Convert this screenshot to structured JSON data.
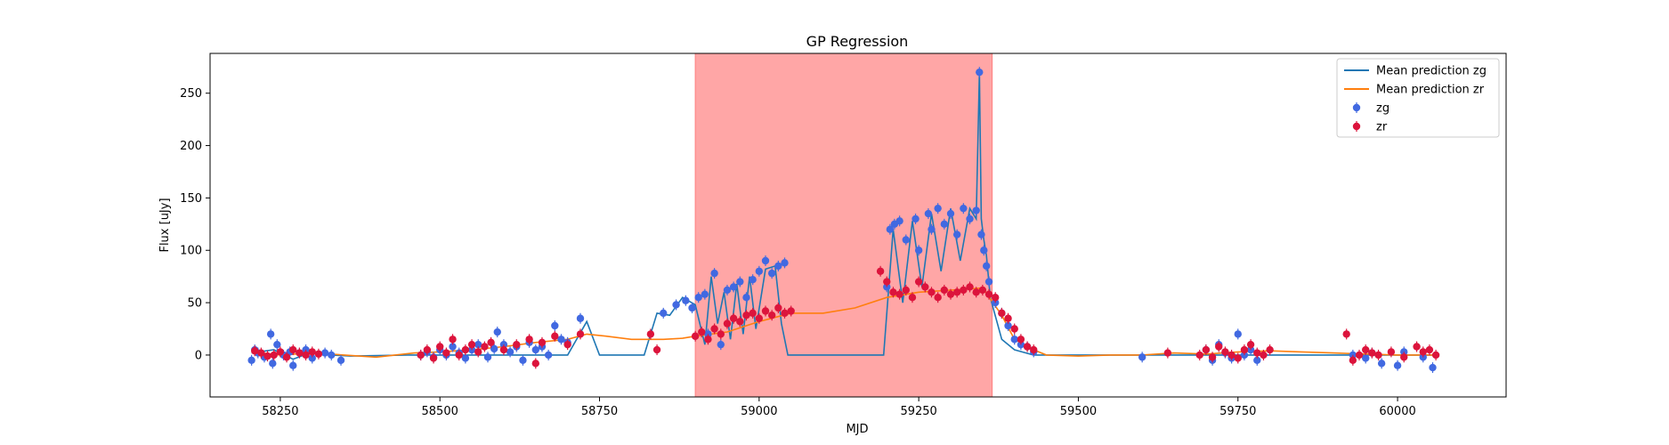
{
  "chart_data": {
    "type": "scatter",
    "title": "GP Regression",
    "xlabel": "MJD",
    "ylabel": "Flux [uJy]",
    "xlim": [
      58140,
      60170
    ],
    "ylim": [
      -40,
      288
    ],
    "xticks": [
      58250,
      58500,
      58750,
      59000,
      59250,
      59500,
      59750,
      60000
    ],
    "yticks": [
      0,
      50,
      100,
      150,
      200,
      250
    ],
    "grid": false,
    "legend_position": "top-right",
    "highlight_span": {
      "x0": 58900,
      "x1": 59365,
      "color": "#ffa6a6"
    },
    "colors": {
      "mean_zg": "#1f77b4",
      "mean_zr": "#ff7f0e",
      "zg": "#4169e1",
      "zr": "#dc143c"
    },
    "legend": [
      {
        "label": "Mean prediction zg",
        "kind": "line",
        "color": "#1f77b4"
      },
      {
        "label": "Mean prediction zr",
        "kind": "line",
        "color": "#ff7f0e"
      },
      {
        "label": "zg",
        "kind": "marker",
        "color": "#4169e1"
      },
      {
        "label": "zr",
        "kind": "marker",
        "color": "#dc143c"
      }
    ],
    "series": [
      {
        "name": "Mean prediction zg",
        "kind": "line",
        "x": [
          58205,
          58240,
          58270,
          58300,
          58330,
          58360,
          58450,
          58700,
          58730,
          58750,
          58820,
          58840,
          58860,
          58880,
          58900,
          58915,
          58925,
          58935,
          58945,
          58955,
          58965,
          58975,
          58985,
          58995,
          59010,
          59025,
          59035,
          59045,
          59060,
          59100,
          59195,
          59210,
          59225,
          59240,
          59255,
          59270,
          59285,
          59300,
          59315,
          59330,
          59340,
          59345,
          59348,
          59352,
          59356,
          59362,
          59380,
          59400,
          59430,
          59500,
          59600,
          59700,
          59800,
          60060
        ],
        "y": [
          2,
          5,
          -4,
          3,
          0,
          -1,
          0,
          0,
          32,
          0,
          0,
          40,
          38,
          55,
          48,
          10,
          75,
          30,
          60,
          15,
          68,
          20,
          75,
          25,
          82,
          85,
          30,
          0,
          0,
          0,
          0,
          120,
          50,
          128,
          65,
          135,
          80,
          140,
          90,
          140,
          130,
          270,
          130,
          110,
          95,
          55,
          15,
          5,
          0,
          0,
          0,
          0,
          0,
          0
        ]
      },
      {
        "name": "Mean prediction zr",
        "kind": "line",
        "x": [
          58205,
          58250,
          58300,
          58350,
          58400,
          58460,
          58500,
          58550,
          58600,
          58650,
          58700,
          58730,
          58760,
          58800,
          58850,
          58880,
          58900,
          58950,
          59000,
          59050,
          59100,
          59150,
          59200,
          59250,
          59300,
          59350,
          59380,
          59400,
          59430,
          59450,
          59500,
          59550,
          59600,
          59650,
          59700,
          59750,
          59800,
          59850,
          59900,
          59950,
          60000,
          60060
        ],
        "y": [
          3,
          0,
          2,
          0,
          -2,
          2,
          3,
          5,
          8,
          12,
          15,
          20,
          18,
          15,
          15,
          16,
          18,
          22,
          32,
          40,
          40,
          45,
          55,
          60,
          62,
          64,
          38,
          15,
          5,
          0,
          -1,
          0,
          0,
          2,
          1,
          3,
          4,
          3,
          2,
          1,
          0,
          0
        ]
      },
      {
        "name": "zg",
        "kind": "scatter",
        "x": [
          58205,
          58210,
          58215,
          58225,
          58235,
          58238,
          58245,
          58255,
          58265,
          58270,
          58280,
          58290,
          58300,
          58320,
          58330,
          58345,
          58470,
          58480,
          58490,
          58500,
          58510,
          58520,
          58530,
          58540,
          58550,
          58560,
          58575,
          58585,
          58590,
          58600,
          58610,
          58620,
          58630,
          58640,
          58650,
          58660,
          58670,
          58680,
          58690,
          58700,
          58720,
          58850,
          58870,
          58885,
          58895,
          58905,
          58915,
          58920,
          58930,
          58940,
          58950,
          58960,
          58970,
          58980,
          58990,
          59000,
          59010,
          59020,
          59030,
          59040,
          59200,
          59205,
          59212,
          59220,
          59230,
          59245,
          59250,
          59265,
          59270,
          59280,
          59290,
          59300,
          59310,
          59320,
          59330,
          59340,
          59345,
          59348,
          59352,
          59356,
          59360,
          59370,
          59380,
          59390,
          59400,
          59410,
          59420,
          59430,
          59600,
          59700,
          59710,
          59720,
          59730,
          59740,
          59750,
          59760,
          59770,
          59780,
          59930,
          59950,
          59960,
          59975,
          60000,
          60010,
          60040,
          60055
        ],
        "y": [
          -5,
          5,
          2,
          -2,
          20,
          -8,
          10,
          0,
          3,
          -10,
          2,
          5,
          -3,
          2,
          0,
          -5,
          0,
          3,
          -2,
          5,
          0,
          8,
          2,
          -3,
          5,
          10,
          -2,
          6,
          22,
          10,
          3,
          8,
          -5,
          12,
          5,
          8,
          0,
          28,
          15,
          12,
          35,
          40,
          48,
          52,
          45,
          55,
          58,
          20,
          78,
          10,
          62,
          65,
          70,
          55,
          72,
          80,
          90,
          78,
          85,
          88,
          65,
          120,
          125,
          128,
          110,
          130,
          100,
          135,
          120,
          140,
          125,
          135,
          115,
          140,
          130,
          138,
          270,
          115,
          100,
          85,
          70,
          50,
          40,
          28,
          15,
          10,
          8,
          3,
          -2,
          5,
          -5,
          10,
          2,
          -3,
          20,
          0,
          5,
          -5,
          0,
          -3,
          2,
          -8,
          -10,
          3,
          -2,
          -12
        ]
      },
      {
        "name": "zr",
        "kind": "scatter",
        "x": [
          58210,
          58220,
          58230,
          58240,
          58250,
          58260,
          58270,
          58280,
          58290,
          58300,
          58310,
          58470,
          58480,
          58490,
          58500,
          58510,
          58520,
          58530,
          58540,
          58550,
          58560,
          58570,
          58580,
          58600,
          58620,
          58640,
          58650,
          58660,
          58680,
          58700,
          58720,
          58830,
          58840,
          58900,
          58910,
          58920,
          58930,
          58940,
          58950,
          58960,
          58970,
          58980,
          58990,
          59000,
          59010,
          59020,
          59030,
          59040,
          59050,
          59190,
          59200,
          59210,
          59220,
          59230,
          59240,
          59250,
          59260,
          59270,
          59280,
          59290,
          59300,
          59310,
          59320,
          59330,
          59340,
          59350,
          59360,
          59370,
          59380,
          59390,
          59400,
          59410,
          59420,
          59430,
          59640,
          59690,
          59700,
          59710,
          59720,
          59730,
          59740,
          59750,
          59760,
          59770,
          59780,
          59790,
          59800,
          59920,
          59930,
          59940,
          59950,
          59960,
          59970,
          59990,
          60010,
          60030,
          60040,
          60050,
          60060
        ],
        "y": [
          4,
          2,
          -1,
          0,
          3,
          -2,
          5,
          2,
          0,
          3,
          1,
          0,
          5,
          -3,
          8,
          2,
          15,
          0,
          5,
          10,
          3,
          8,
          12,
          5,
          10,
          15,
          -8,
          12,
          18,
          10,
          20,
          20,
          5,
          18,
          22,
          15,
          25,
          20,
          30,
          35,
          32,
          38,
          40,
          35,
          42,
          38,
          45,
          40,
          42,
          80,
          70,
          60,
          58,
          62,
          55,
          70,
          65,
          60,
          55,
          62,
          58,
          60,
          62,
          65,
          60,
          62,
          58,
          55,
          40,
          35,
          25,
          15,
          8,
          5,
          2,
          0,
          5,
          -2,
          8,
          3,
          0,
          -3,
          5,
          10,
          2,
          0,
          5,
          20,
          -5,
          0,
          5,
          2,
          0,
          3,
          -2,
          8,
          3,
          5,
          0
        ]
      }
    ]
  }
}
